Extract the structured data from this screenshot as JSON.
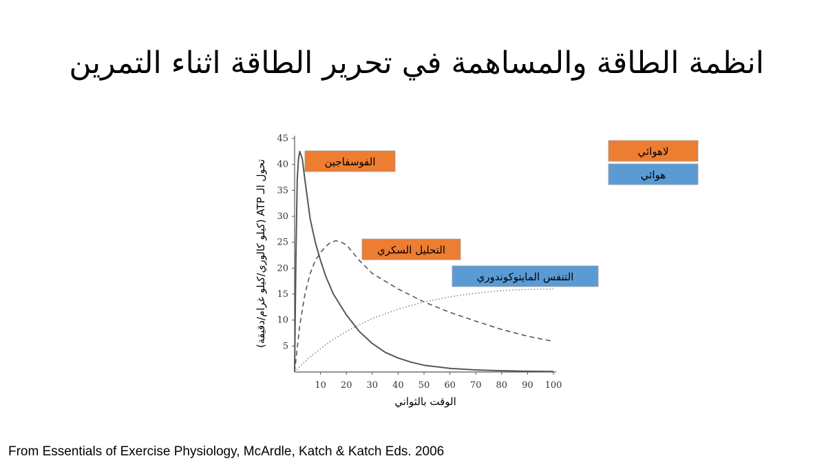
{
  "slide": {
    "title": "انظمة الطاقة والمساهمة في تحرير الطاقة اثناء التمرين",
    "source": "From Essentials of Exercise Physiology, McArdle, Katch & Katch Eds. 2006"
  },
  "legend": [
    {
      "label": "لاهوائي",
      "color": "#ED7D31"
    },
    {
      "label": "هوائي",
      "color": "#5B9BD5"
    }
  ],
  "chart_data": {
    "type": "line",
    "xlabel": "الوقت بالثواني",
    "ylabel": "تحول الـ ATP (كيلو كالوري/كيلو غرام/دقيقة)",
    "xlim": [
      0,
      100
    ],
    "ylim": [
      0,
      45
    ],
    "xticks": [
      10,
      20,
      30,
      40,
      50,
      60,
      70,
      80,
      90,
      100
    ],
    "yticks": [
      5,
      10,
      15,
      20,
      25,
      30,
      35,
      40,
      45
    ],
    "grid": false,
    "legend_position": "top-right",
    "series": [
      {
        "name": "الفوسفاجين",
        "system": "لاهوائي",
        "line_style": "solid",
        "label_color": "#ED7D31",
        "x": [
          0,
          0.5,
          1,
          1.5,
          2,
          3,
          4,
          6,
          8,
          10,
          12,
          15,
          20,
          25,
          30,
          35,
          40,
          45,
          50,
          60,
          70,
          80,
          90,
          100
        ],
        "y": [
          0,
          22,
          37,
          41,
          42.5,
          41,
          37,
          29.5,
          25,
          21.5,
          18.5,
          15,
          11,
          7.8,
          5.5,
          3.8,
          2.7,
          1.9,
          1.3,
          0.7,
          0.4,
          0.25,
          0.15,
          0.1
        ]
      },
      {
        "name": "التحليل السكري",
        "system": "لاهوائي",
        "line_style": "dashed",
        "label_color": "#ED7D31",
        "x": [
          0,
          2,
          4,
          6,
          8,
          10,
          12,
          14,
          16,
          18,
          20,
          25,
          30,
          40,
          50,
          60,
          70,
          80,
          90,
          100
        ],
        "y": [
          0,
          9,
          15,
          19,
          21.5,
          23,
          24.2,
          25,
          25.3,
          25,
          24.5,
          21.5,
          19,
          16,
          13.5,
          11.5,
          9.8,
          8.2,
          6.9,
          5.9
        ]
      },
      {
        "name": "التنفس المايتوكوندوري",
        "system": "هوائي",
        "line_style": "dotted",
        "label_color": "#5B9BD5",
        "x": [
          0,
          5,
          10,
          15,
          20,
          25,
          30,
          40,
          50,
          60,
          70,
          80,
          90,
          100
        ],
        "y": [
          0,
          2.5,
          4.5,
          6.3,
          7.8,
          9.1,
          10.3,
          12.1,
          13.5,
          14.5,
          15.2,
          15.7,
          15.9,
          16
        ]
      }
    ]
  }
}
